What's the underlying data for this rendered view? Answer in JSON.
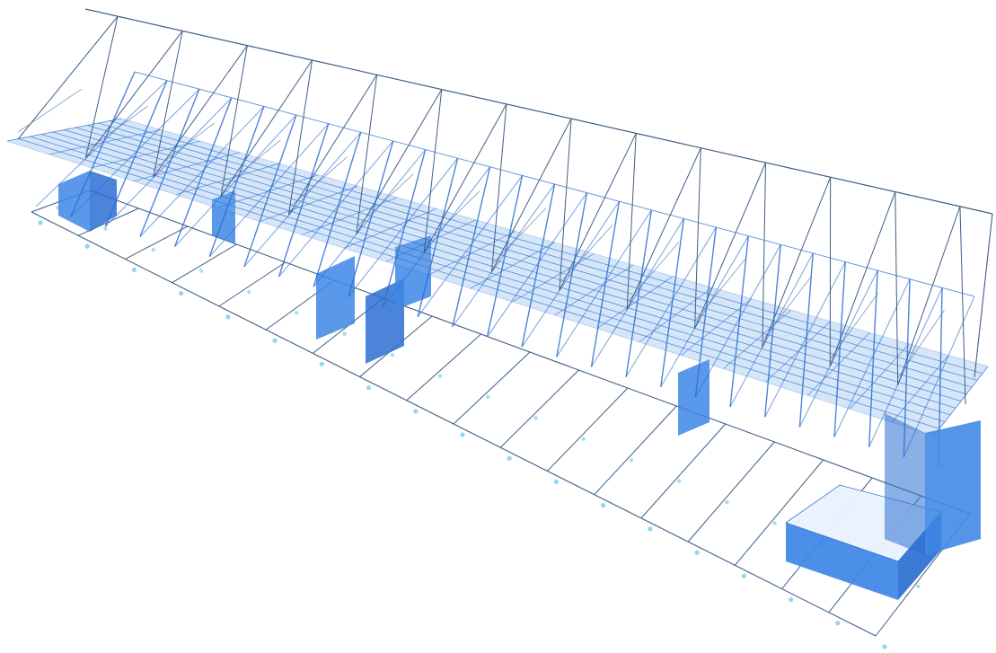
{
  "scene": {
    "view": "3d-isometric",
    "colors": {
      "background": "#ffffff",
      "truss_line": "#3f5f86",
      "truss_line_light": "#5b7fa8",
      "deck_fill": "#7fb2ee",
      "deck_line": "#2f6fd0",
      "solid_fill": "#3d86e6",
      "solid_fill_dark": "#2c6fd2",
      "grid_line": "#3f5f86",
      "support_node": "#7fd0ec"
    },
    "components": [
      "roof-truss",
      "deck-slab",
      "bracing-members",
      "base-grid",
      "wall-blocks",
      "support-nodes"
    ]
  }
}
